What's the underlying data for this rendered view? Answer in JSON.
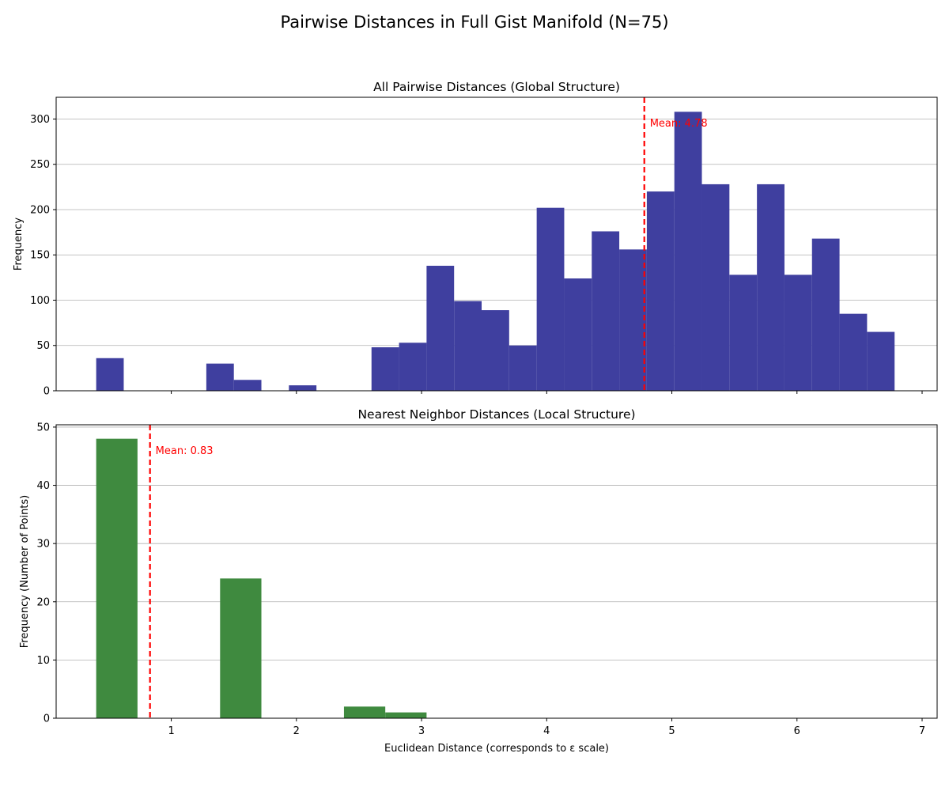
{
  "figure": {
    "title": "Pairwise Distances in Full Gist Manifold (N=75)"
  },
  "chart_data": [
    {
      "type": "bar",
      "title": "All Pairwise Distances (Global Structure)",
      "xlabel": "",
      "ylabel": "Frequency",
      "xlim": [
        0.08,
        7.12
      ],
      "ylim": [
        0,
        324
      ],
      "x_ticks": [
        1,
        2,
        3,
        4,
        5,
        6,
        7
      ],
      "x_tick_labels_visible": false,
      "y_ticks": [
        0,
        50,
        100,
        150,
        200,
        250,
        300
      ],
      "grid": "y",
      "bar_color": "#3f3f9f",
      "bin_edges": [
        0.4,
        0.62,
        0.84,
        1.06,
        1.28,
        1.5,
        1.72,
        1.94,
        2.16,
        2.38,
        2.6,
        2.82,
        3.04,
        3.26,
        3.48,
        3.7,
        3.92,
        4.14,
        4.36,
        4.58,
        4.8,
        5.02,
        5.24,
        5.46,
        5.68,
        5.9,
        6.12,
        6.34,
        6.56,
        6.78
      ],
      "values": [
        36,
        0,
        0,
        0,
        30,
        12,
        0,
        6,
        0,
        0,
        48,
        53,
        138,
        99,
        89,
        50,
        202,
        124,
        176,
        156,
        220,
        308,
        228,
        128,
        228,
        128,
        168,
        85,
        65
      ],
      "mean_line": {
        "value": 4.78,
        "label": "Mean: 4.78",
        "color": "#ff0000"
      }
    },
    {
      "type": "bar",
      "title": "Nearest Neighbor Distances (Local Structure)",
      "xlabel": "Euclidean Distance (corresponds to ε scale)",
      "ylabel": "Frequency (Number of Points)",
      "xlim": [
        0.08,
        7.12
      ],
      "ylim": [
        0,
        50.4
      ],
      "x_ticks": [
        1,
        2,
        3,
        4,
        5,
        6,
        7
      ],
      "x_tick_labels_visible": true,
      "y_ticks": [
        0,
        10,
        20,
        30,
        40,
        50
      ],
      "grid": "y",
      "bar_color": "#3f8a3f",
      "bin_edges": [
        0.4,
        0.73,
        1.06,
        1.39,
        1.72,
        2.05,
        2.38,
        2.71,
        3.04
      ],
      "values": [
        48,
        0,
        0,
        24,
        0,
        0,
        2,
        1
      ],
      "mean_line": {
        "value": 0.83,
        "label": "Mean: 0.83",
        "color": "#ff0000"
      }
    }
  ]
}
